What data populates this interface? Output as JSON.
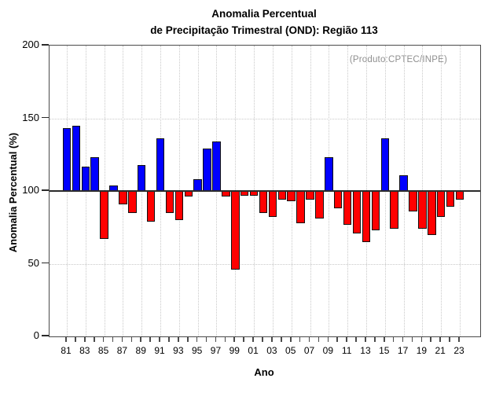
{
  "title": {
    "line1": "Anomalia Percentual",
    "line2": "de Precipitação Trimestral (OND): Região 113"
  },
  "chart_data": {
    "type": "bar",
    "title": "Anomalia Percentual de Precipitação Trimestral (OND): Região 113",
    "xlabel": "Ano",
    "ylabel": "Anomalia Percentual (%)",
    "annotation": "(Produto:CPTEC/INPE)",
    "ylim": [
      0,
      200
    ],
    "yticks": [
      0,
      50,
      100,
      150,
      200
    ],
    "baseline": 100,
    "grid": "dotted, vertical every 2 years and horizontal at ticks",
    "legend": "none",
    "categories": [
      1981,
      1982,
      1983,
      1984,
      1985,
      1986,
      1987,
      1988,
      1989,
      1990,
      1991,
      1992,
      1993,
      1994,
      1995,
      1996,
      1997,
      1998,
      1999,
      2000,
      2001,
      2002,
      2003,
      2004,
      2005,
      2006,
      2007,
      2008,
      2009,
      2010,
      2011,
      2012,
      2013,
      2014,
      2015,
      2016,
      2017,
      2018,
      2019,
      2020,
      2021,
      2022,
      2023
    ],
    "values": [
      143,
      145,
      117,
      123,
      67,
      104,
      91,
      85,
      118,
      79,
      136,
      85,
      80,
      96,
      108,
      129,
      134,
      96,
      46,
      97,
      97,
      85,
      82,
      94,
      93,
      78,
      94,
      81,
      123,
      88,
      77,
      71,
      65,
      73,
      136,
      74,
      111,
      86,
      74,
      70,
      82,
      89,
      94
    ],
    "x_tick_labels": [
      "81",
      "83",
      "85",
      "87",
      "89",
      "91",
      "93",
      "95",
      "97",
      "99",
      "01",
      "03",
      "05",
      "07",
      "09",
      "11",
      "13",
      "15",
      "17",
      "19",
      "21",
      "23"
    ],
    "colors": {
      "above_baseline": "#0000ff",
      "below_baseline": "#ff0000",
      "bar_border": "#101010",
      "baseline_line": "#2a2a2a",
      "gridline": "#c9c9c9",
      "frame": "#4a4a4a",
      "annotation_text": "#8f8f8f"
    }
  }
}
